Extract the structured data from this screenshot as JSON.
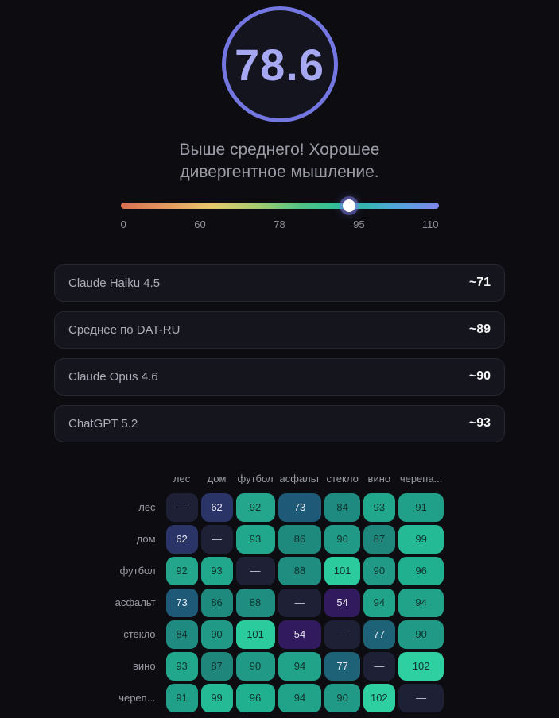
{
  "score": {
    "value": "78.6",
    "subtitle_line1": "Выше среднего! Хорошее",
    "subtitle_line2": "дивергентное мышление.",
    "circle_border_color": "#7477e2",
    "value_color": "#a7a8f2"
  },
  "scale": {
    "tick_labels": [
      "0",
      "60",
      "78",
      "95",
      "110"
    ],
    "thumb_percent": 71.75,
    "gradient_colors": [
      "#d96f55",
      "#e09a62",
      "#e6c86c",
      "#a6cc72",
      "#4fc285",
      "#26bf9d",
      "#4fa8d4",
      "#8085ec"
    ]
  },
  "comparisons": [
    {
      "label": "Claude Haiku 4.5",
      "value": "~71"
    },
    {
      "label": "Среднее по DAT-RU",
      "value": "~89"
    },
    {
      "label": "Claude Opus 4.6",
      "value": "~90"
    },
    {
      "label": "ChatGPT 5.2",
      "value": "~93"
    }
  ],
  "chart_data": {
    "type": "heatmap",
    "col_headers": [
      "лес",
      "дом",
      "футбол",
      "асфальт",
      "стекло",
      "вино",
      "черепа..."
    ],
    "row_headers": [
      "лес",
      "дом",
      "футбол",
      "асфальт",
      "стекло",
      "вино",
      "череп..."
    ],
    "matrix": [
      [
        null,
        62,
        92,
        73,
        84,
        93,
        91
      ],
      [
        62,
        null,
        93,
        86,
        90,
        87,
        99
      ],
      [
        92,
        93,
        null,
        88,
        101,
        90,
        96
      ],
      [
        73,
        86,
        88,
        null,
        54,
        94,
        94
      ],
      [
        84,
        90,
        101,
        54,
        null,
        77,
        90
      ],
      [
        93,
        87,
        90,
        94,
        77,
        null,
        102
      ],
      [
        91,
        99,
        96,
        94,
        90,
        102,
        null
      ]
    ],
    "empty_symbol": "—",
    "value_range": [
      54,
      102
    ]
  },
  "heatmap_style": {
    "value_colors": {
      "54": "#321a5e",
      "62": "#2b3467",
      "73": "#1e5a78",
      "77": "#1e6278",
      "84": "#1f8b80",
      "86": "#1e8a7e",
      "87": "#1e867b",
      "88": "#1f8d80",
      "90": "#209a86",
      "91": "#20a089",
      "92": "#23a68c",
      "93": "#21a88c",
      "94": "#21a389",
      "96": "#20b090",
      "99": "#23ba95",
      "101": "#2ccb9e",
      "102": "#2ed0a2"
    },
    "diagonal_bg": "#1e2136",
    "light_text_color": "#e9e9f2",
    "dark_text_color": "#0e332d",
    "dash_color": "#c9c9d6",
    "light_text_max_value": 77
  }
}
